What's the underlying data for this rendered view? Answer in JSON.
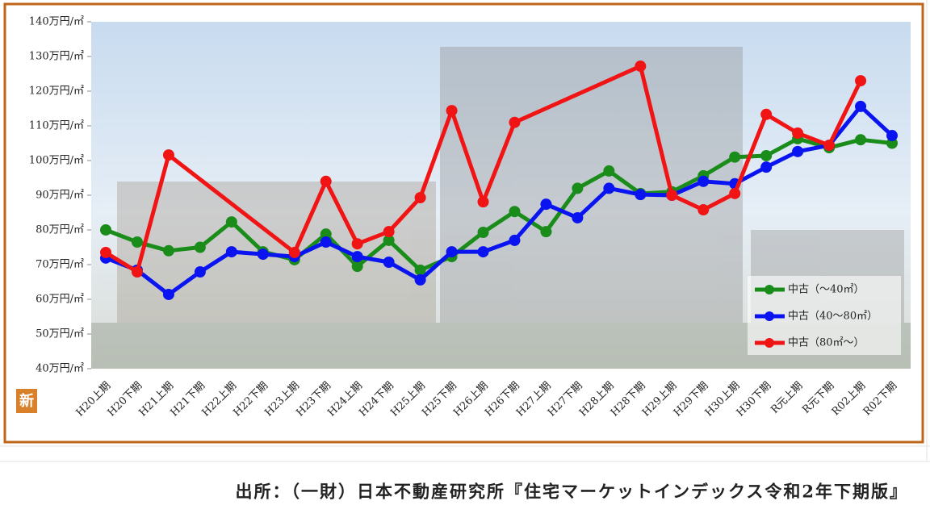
{
  "chart_data": {
    "type": "line",
    "categories": [
      "H20上期",
      "H20下期",
      "H21上期",
      "H21下期",
      "H22上期",
      "H22下期",
      "H23上期",
      "H23下期",
      "H24上期",
      "H24下期",
      "H25上期",
      "H25下期",
      "H26上期",
      "H26下期",
      "H27上期",
      "H27下期",
      "H28上期",
      "H28下期",
      "H29上期",
      "H29下期",
      "H30上期",
      "H30下期",
      "R元上期",
      "R元下期",
      "R02上期",
      "R02下期"
    ],
    "series": [
      {
        "name": "中古（～40㎡）",
        "color": "#1a8c1a",
        "values": [
          80,
          76.5,
          74,
          75,
          82.3,
          73.7,
          71.4,
          78.8,
          69.5,
          77,
          68.4,
          72.3,
          79.3,
          85.3,
          79.5,
          92,
          97,
          90.5,
          91,
          95.6,
          101,
          101.4,
          106.3,
          103.7,
          106,
          105
        ]
      },
      {
        "name": "中古（40～80㎡）",
        "color": "#0a14f0",
        "values": [
          71.9,
          68.4,
          61.4,
          67.9,
          73.7,
          73,
          72.3,
          76.5,
          72.3,
          70.7,
          65.6,
          73.7,
          73.7,
          77,
          87.4,
          83.5,
          92,
          90.2,
          90,
          94,
          93.3,
          98.1,
          102.6,
          104.4,
          115.6,
          107.2
        ]
      },
      {
        "name": "中古（80㎡～）",
        "color": "#f01414",
        "values": [
          73.5,
          67.9,
          101.6,
          null,
          null,
          null,
          73.5,
          94,
          76,
          79.5,
          89.3,
          114.4,
          88.1,
          111,
          null,
          null,
          null,
          127.2,
          90,
          85.8,
          90.5,
          113.3,
          107.9,
          104.4,
          123,
          null
        ]
      }
    ],
    "ylim": [
      40,
      140
    ],
    "yticks": [
      {
        "value": 40,
        "label": "40万円/㎡"
      },
      {
        "value": 50,
        "label": "50万円/㎡"
      },
      {
        "value": 60,
        "label": "60万円/㎡"
      },
      {
        "value": 70,
        "label": "70万円/㎡"
      },
      {
        "value": 80,
        "label": "80万円/㎡"
      },
      {
        "value": 90,
        "label": "90万円/㎡"
      },
      {
        "value": 100,
        "label": "100万円/㎡"
      },
      {
        "value": 110,
        "label": "110万円/㎡"
      },
      {
        "value": 120,
        "label": "120万円/㎡"
      },
      {
        "value": 130,
        "label": "130万円/㎡"
      },
      {
        "value": 140,
        "label": "140万円/㎡"
      }
    ],
    "legend": "lower right"
  },
  "badge": "新",
  "source": "出所：（一財）日本不動産研究所『住宅マーケットインデックス令和2年下期版』"
}
